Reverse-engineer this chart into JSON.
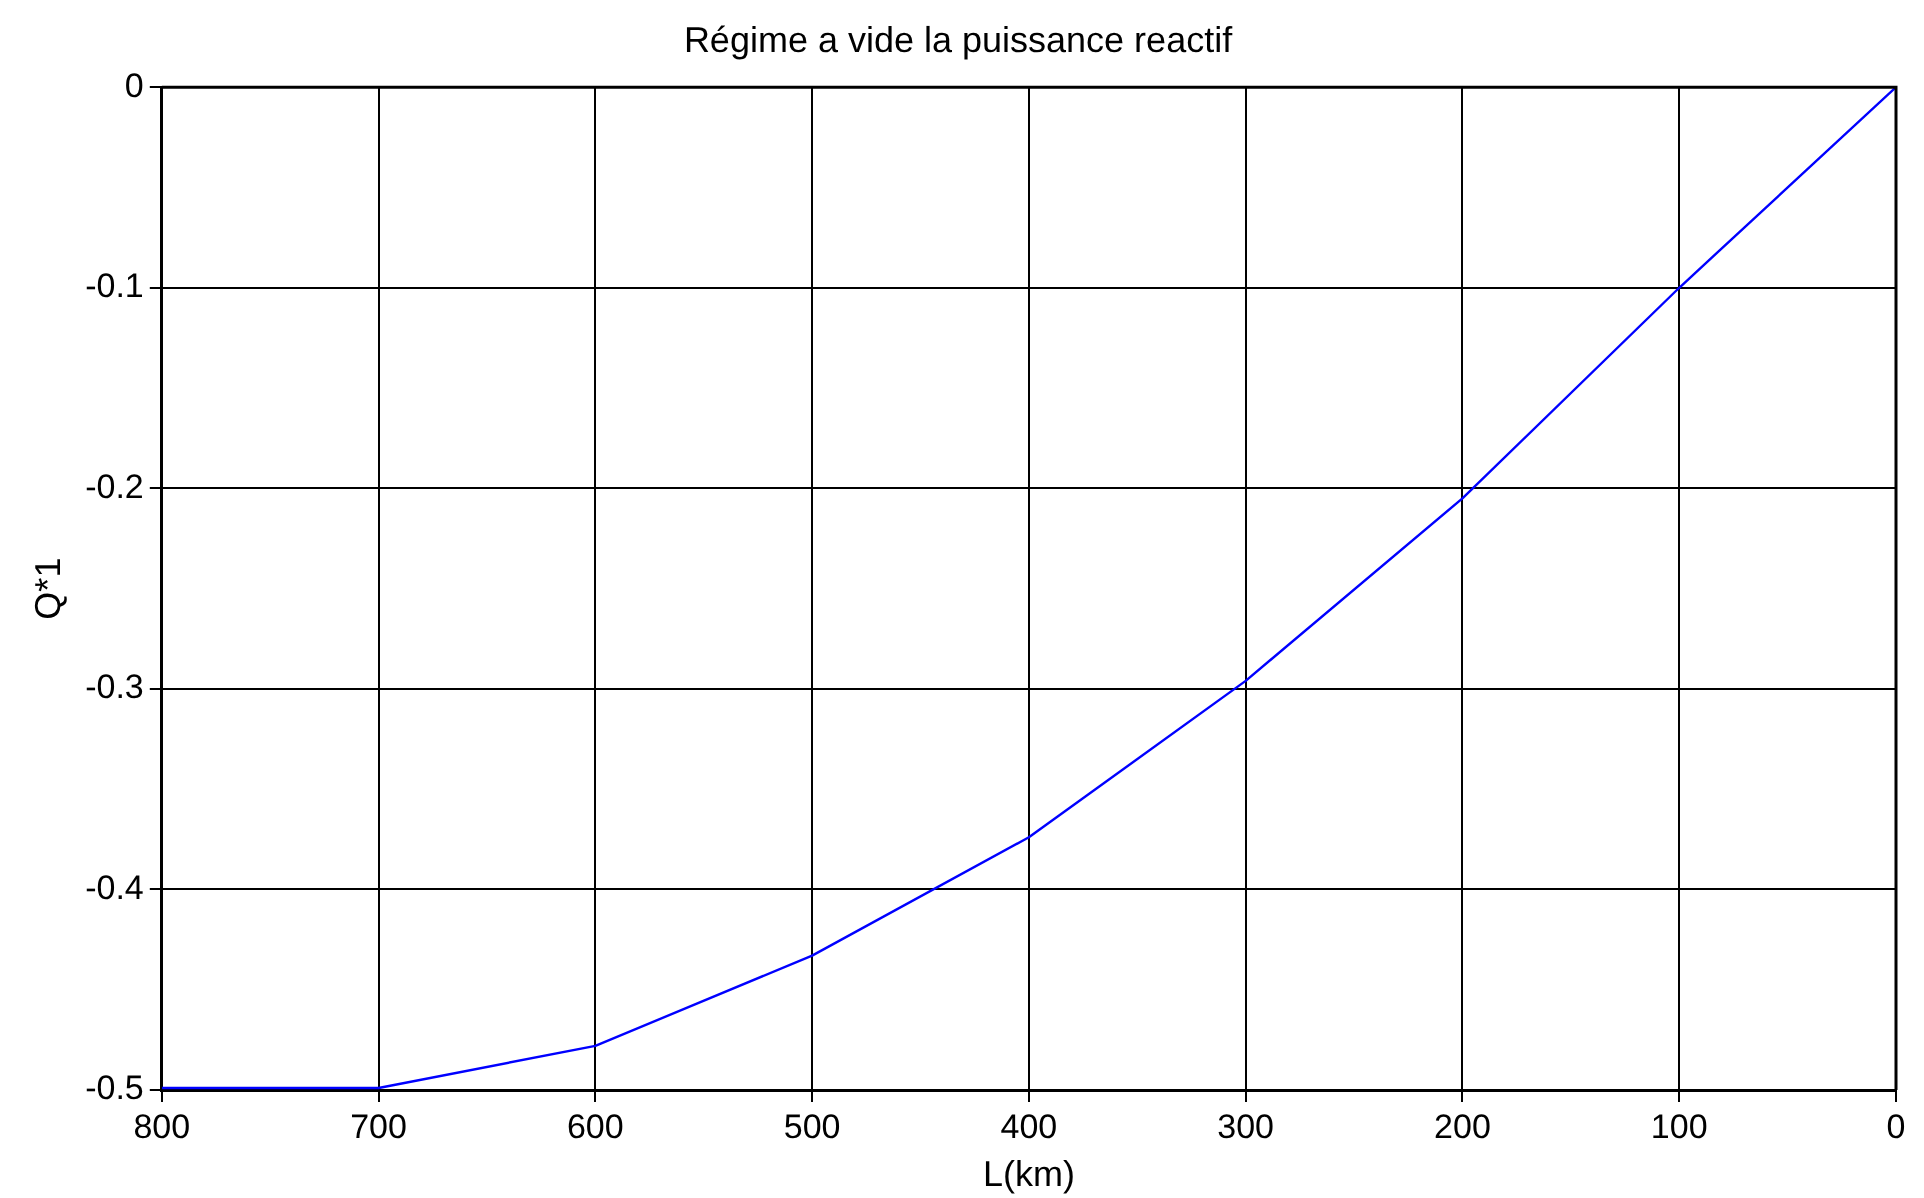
{
  "chart_data": {
    "type": "line",
    "title": "Régime a vide la puissance reactif",
    "xlabel": "L(km)",
    "ylabel": "Q*1",
    "x": [
      800,
      700,
      600,
      500,
      400,
      300,
      200,
      100,
      0
    ],
    "series": [
      {
        "color": "#0000ff",
        "values": [
          -0.499,
          -0.499,
          -0.478,
          -0.433,
          -0.374,
          -0.296,
          -0.205,
          -0.1,
          0
        ]
      }
    ],
    "xlim": [
      800,
      0
    ],
    "xticks": [
      800,
      700,
      600,
      500,
      400,
      300,
      200,
      100,
      0
    ],
    "ylim": [
      -0.5,
      0
    ],
    "yticks": [
      -0.5,
      -0.4,
      -0.3,
      -0.2,
      -0.1,
      0
    ],
    "grid": true,
    "legend": false,
    "marker": "none",
    "line_style": "solid"
  }
}
